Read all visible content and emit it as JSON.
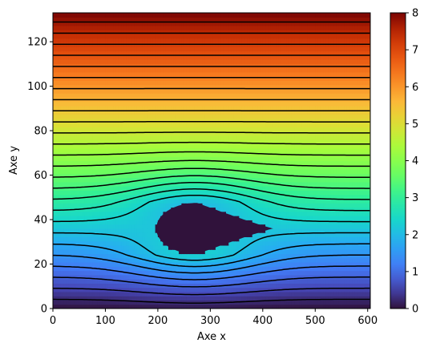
{
  "chart_data": {
    "type": "heatmap",
    "title": "",
    "xlabel": "Axe x",
    "ylabel": "Axe y",
    "xlim": [
      0,
      605
    ],
    "ylim": [
      0,
      133
    ],
    "xticks": [
      0,
      100,
      200,
      300,
      400,
      500,
      600
    ],
    "yticks": [
      0,
      20,
      40,
      60,
      80,
      100,
      120
    ],
    "colormap": "turbo",
    "colorbar": {
      "range": [
        0,
        8
      ],
      "ticks": [
        0,
        1,
        2,
        3,
        4,
        5,
        6,
        7,
        8
      ]
    },
    "field": {
      "description_values": "stream function: approx 0 at y=0 rising to approx 8 at y=133; 0 inside obstacle",
      "min": 0,
      "max": 8
    },
    "obstacle": {
      "value": 0,
      "color": "#30123b",
      "x_range": [
        190,
        420
      ],
      "y_range": [
        25,
        48
      ],
      "shape": "teardrop, blunt front near x=200, tail tip near x=420, y=34"
    },
    "streamline_levels": [
      0.25,
      0.55,
      0.85,
      1.15,
      1.45,
      1.75,
      2.05,
      2.35,
      2.65,
      2.95,
      3.25,
      3.55,
      3.85,
      4.15,
      4.45,
      4.75,
      5.05,
      5.35,
      5.65,
      5.95,
      6.25,
      6.55,
      6.85,
      7.15,
      7.45,
      7.75
    ],
    "grid": false
  }
}
